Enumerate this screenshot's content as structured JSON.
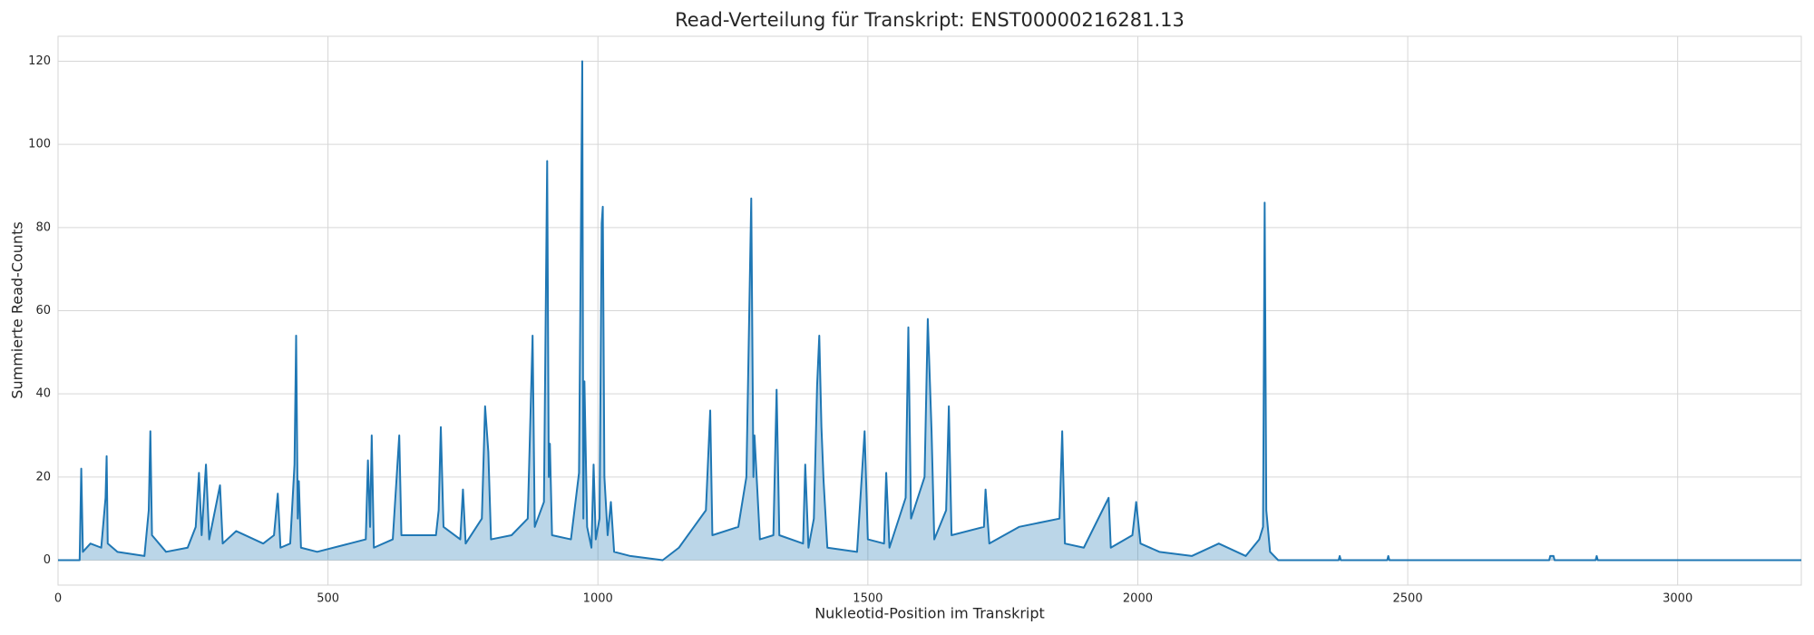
{
  "chart_data": {
    "type": "line",
    "title": "Read-Verteilung für Transkript: ENST00000216281.13",
    "x_label": "Nukleotid-Position im Transkript",
    "y_label": "Summierte Read-Counts",
    "xlim": [
      0,
      3229
    ],
    "ylim": [
      -6,
      126
    ],
    "xticks": [
      0,
      500,
      1000,
      1500,
      2000,
      2500,
      3000
    ],
    "yticks": [
      0,
      20,
      40,
      60,
      80,
      100,
      120
    ],
    "grid": true,
    "fill": true,
    "series": [
      {
        "color": "#1f77b4",
        "x": [
          0,
          40,
          43,
          46,
          60,
          80,
          88,
          90,
          92,
          110,
          160,
          168,
          171,
          174,
          200,
          240,
          255,
          261,
          266,
          274,
          280,
          300,
          305,
          330,
          380,
          400,
          407,
          412,
          430,
          438,
          441,
          444,
          446,
          450,
          480,
          540,
          570,
          574,
          578,
          581,
          585,
          620,
          632,
          636,
          700,
          705,
          709,
          714,
          745,
          750,
          755,
          785,
          791,
          797,
          802,
          840,
          870,
          879,
          883,
          900,
          906,
          909,
          911,
          915,
          950,
          965,
          971,
          973,
          975,
          980,
          988,
          992,
          996,
          1003,
          1007,
          1009,
          1012,
          1018,
          1024,
          1030,
          1060,
          1120,
          1150,
          1200,
          1208,
          1212,
          1260,
          1275,
          1284,
          1288,
          1290,
          1300,
          1325,
          1331,
          1336,
          1380,
          1384,
          1390,
          1400,
          1406,
          1410,
          1414,
          1418,
          1425,
          1480,
          1494,
          1500,
          1530,
          1534,
          1540,
          1570,
          1575,
          1580,
          1605,
          1611,
          1618,
          1623,
          1645,
          1650,
          1655,
          1715,
          1718,
          1725,
          1780,
          1855,
          1860,
          1865,
          1900,
          1946,
          1950,
          1990,
          1997,
          2005,
          2040,
          2100,
          2150,
          2200,
          2225,
          2232,
          2235,
          2238,
          2245,
          2260,
          2372,
          2374,
          2376,
          2462,
          2464,
          2466,
          2762,
          2764,
          2770,
          2772,
          2848,
          2850,
          2852,
          3229
        ],
        "values": [
          0,
          0,
          22,
          2,
          4,
          3,
          15,
          25,
          4,
          2,
          1,
          12,
          31,
          6,
          2,
          3,
          8,
          21,
          6,
          23,
          5,
          18,
          4,
          7,
          4,
          6,
          16,
          3,
          4,
          23,
          54,
          10,
          19,
          3,
          2,
          4,
          5,
          24,
          8,
          30,
          3,
          5,
          30,
          6,
          6,
          12,
          32,
          8,
          5,
          17,
          4,
          10,
          37,
          26,
          5,
          6,
          10,
          54,
          8,
          14,
          96,
          20,
          28,
          6,
          5,
          21,
          120,
          10,
          43,
          8,
          3,
          23,
          5,
          10,
          81,
          85,
          20,
          6,
          14,
          2,
          1,
          0,
          3,
          12,
          36,
          6,
          8,
          20,
          87,
          20,
          30,
          5,
          6,
          41,
          6,
          4,
          23,
          3,
          10,
          42,
          54,
          32,
          19,
          3,
          2,
          31,
          5,
          4,
          21,
          3,
          15,
          56,
          10,
          20,
          58,
          31,
          5,
          12,
          37,
          6,
          8,
          17,
          4,
          8,
          10,
          31,
          4,
          3,
          15,
          3,
          6,
          14,
          4,
          2,
          1,
          4,
          1,
          5,
          8,
          86,
          12,
          2,
          0,
          0,
          1,
          0,
          0,
          1,
          0,
          0,
          1,
          1,
          0,
          0,
          1,
          0,
          0
        ]
      }
    ]
  }
}
